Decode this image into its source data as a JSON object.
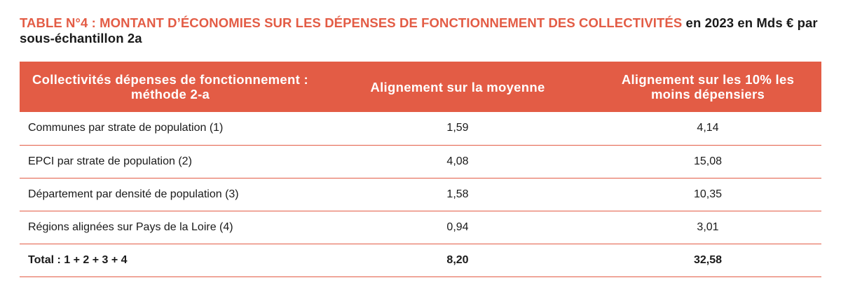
{
  "title": {
    "accent": "TABLE N°4 : MONTANT D’ÉCONOMIES SUR LES DÉPENSES DE FONCTIONNEMENT DES COLLECTIVITÉS",
    "rest": " en 2023 en Mds € par sous-échantillon 2a"
  },
  "table": {
    "headers": [
      "Collectivités dépenses de fonctionnement : méthode 2-a",
      "Alignement sur la moyenne",
      "Alignement sur les 10% les moins dépensiers"
    ],
    "rows": [
      {
        "label": "Communes par strate de population (1)",
        "moyenne": "1,59",
        "dix_pourcent": "4,14"
      },
      {
        "label": "EPCI par strate de population (2)",
        "moyenne": "4,08",
        "dix_pourcent": "15,08"
      },
      {
        "label": "Département par densité de population (3)",
        "moyenne": "1,58",
        "dix_pourcent": "10,35"
      },
      {
        "label": "Régions alignées sur Pays de la Loire (4)",
        "moyenne": "0,94",
        "dix_pourcent": "3,01"
      }
    ],
    "total": {
      "label": "Total :  1 + 2 + 3 + 4",
      "moyenne": "8,20",
      "dix_pourcent": "32,58"
    }
  },
  "colors": {
    "accent": "#e35c45",
    "header_text": "#ffffff",
    "body_text": "#1a1a1a"
  }
}
